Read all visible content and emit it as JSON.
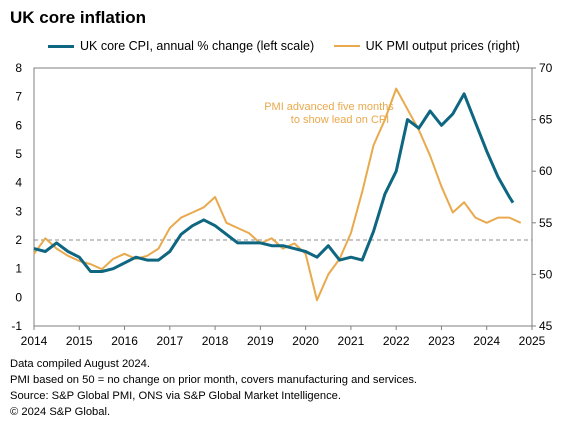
{
  "title": "UK core inflation",
  "legend": {
    "cpi": "UK core CPI, annual % change (left scale)",
    "pmi": "UK PMI output prices (right)"
  },
  "colors": {
    "cpi": "#0e6680",
    "pmi": "#e9a94d",
    "annotation": "#e9a94d",
    "reference": "#8c8c8c",
    "axis": "#7f7f7f"
  },
  "annotation": [
    "PMI advanced five months",
    "to show lead on CPI"
  ],
  "notes": [
    "Data compiled August 2024.",
    "PMI based on 50 = no change on prior month, covers manufacturing and services.",
    "Source: S&P Global PMI, ONS via S&P Global Market Intelligence.",
    "© 2024 S&P Global."
  ],
  "chart_data": {
    "type": "line",
    "x_axis": {
      "min": 2014,
      "max": 2025,
      "ticks": [
        "2014",
        "2015",
        "2016",
        "2017",
        "2018",
        "2019",
        "2020",
        "2021",
        "2022",
        "2023",
        "2024",
        "2025"
      ]
    },
    "y_left": {
      "min": -1,
      "max": 8,
      "ticks": [
        "-1",
        "0",
        "1",
        "2",
        "3",
        "4",
        "5",
        "6",
        "7",
        "8"
      ]
    },
    "y_right": {
      "min": 45,
      "max": 70,
      "ticks": [
        "45",
        "50",
        "55",
        "60",
        "65",
        "70"
      ]
    },
    "reference_line_left": 2,
    "series": [
      {
        "name": "UK core CPI, annual % change (left scale)",
        "axis": "left",
        "points": [
          [
            2014.0,
            1.7
          ],
          [
            2014.25,
            1.6
          ],
          [
            2014.5,
            1.9
          ],
          [
            2014.75,
            1.6
          ],
          [
            2015.0,
            1.4
          ],
          [
            2015.25,
            0.9
          ],
          [
            2015.5,
            0.9
          ],
          [
            2015.75,
            1.0
          ],
          [
            2016.0,
            1.2
          ],
          [
            2016.25,
            1.4
          ],
          [
            2016.5,
            1.3
          ],
          [
            2016.75,
            1.3
          ],
          [
            2017.0,
            1.6
          ],
          [
            2017.25,
            2.2
          ],
          [
            2017.5,
            2.5
          ],
          [
            2017.75,
            2.7
          ],
          [
            2018.0,
            2.5
          ],
          [
            2018.25,
            2.2
          ],
          [
            2018.5,
            1.9
          ],
          [
            2018.75,
            1.9
          ],
          [
            2019.0,
            1.9
          ],
          [
            2019.25,
            1.8
          ],
          [
            2019.5,
            1.8
          ],
          [
            2019.75,
            1.7
          ],
          [
            2020.0,
            1.6
          ],
          [
            2020.25,
            1.4
          ],
          [
            2020.5,
            1.8
          ],
          [
            2020.75,
            1.3
          ],
          [
            2021.0,
            1.4
          ],
          [
            2021.25,
            1.3
          ],
          [
            2021.5,
            2.3
          ],
          [
            2021.75,
            3.6
          ],
          [
            2022.0,
            4.4
          ],
          [
            2022.25,
            6.2
          ],
          [
            2022.5,
            5.9
          ],
          [
            2022.75,
            6.5
          ],
          [
            2023.0,
            6.0
          ],
          [
            2023.25,
            6.4
          ],
          [
            2023.5,
            7.1
          ],
          [
            2023.75,
            6.1
          ],
          [
            2024.0,
            5.1
          ],
          [
            2024.25,
            4.2
          ],
          [
            2024.5,
            3.5
          ],
          [
            2024.58,
            3.3
          ]
        ]
      },
      {
        "name": "UK PMI output prices (right)",
        "axis": "right",
        "points": [
          [
            2014.0,
            52.0
          ],
          [
            2014.25,
            53.5
          ],
          [
            2014.5,
            52.5
          ],
          [
            2014.75,
            51.8
          ],
          [
            2015.0,
            51.3
          ],
          [
            2015.25,
            51.0
          ],
          [
            2015.5,
            50.5
          ],
          [
            2015.75,
            51.5
          ],
          [
            2016.0,
            52.0
          ],
          [
            2016.25,
            51.5
          ],
          [
            2016.5,
            51.8
          ],
          [
            2016.75,
            52.5
          ],
          [
            2017.0,
            54.5
          ],
          [
            2017.25,
            55.5
          ],
          [
            2017.5,
            56.0
          ],
          [
            2017.75,
            56.5
          ],
          [
            2018.0,
            57.5
          ],
          [
            2018.25,
            55.0
          ],
          [
            2018.5,
            54.5
          ],
          [
            2018.75,
            54.0
          ],
          [
            2019.0,
            53.0
          ],
          [
            2019.25,
            53.5
          ],
          [
            2019.5,
            52.5
          ],
          [
            2019.75,
            53.0
          ],
          [
            2020.0,
            52.0
          ],
          [
            2020.25,
            47.5
          ],
          [
            2020.5,
            50.0
          ],
          [
            2020.75,
            51.5
          ],
          [
            2021.0,
            54.0
          ],
          [
            2021.25,
            58.0
          ],
          [
            2021.5,
            62.5
          ],
          [
            2021.75,
            65.0
          ],
          [
            2022.0,
            68.0
          ],
          [
            2022.25,
            66.0
          ],
          [
            2022.5,
            64.0
          ],
          [
            2022.75,
            61.5
          ],
          [
            2023.0,
            58.5
          ],
          [
            2023.25,
            56.0
          ],
          [
            2023.5,
            57.0
          ],
          [
            2023.75,
            55.5
          ],
          [
            2024.0,
            55.0
          ],
          [
            2024.25,
            55.5
          ],
          [
            2024.5,
            55.5
          ],
          [
            2024.75,
            55.0
          ]
        ]
      }
    ]
  }
}
